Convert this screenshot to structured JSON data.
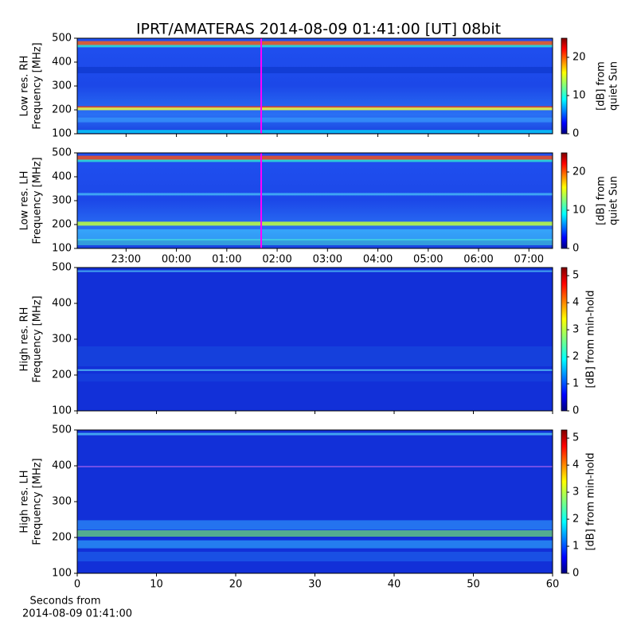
{
  "title": "IPRT/AMATERAS 2014-08-09 01:41:00 [UT]   08bit",
  "chart_data": [
    {
      "type": "heatmap",
      "ylabel": [
        "Low res. RH",
        "Frequency [MHz]"
      ],
      "ylim": [
        100,
        500
      ],
      "yticks": [
        100,
        200,
        300,
        400,
        500
      ],
      "xlim": [
        22.03,
        31.47
      ],
      "xticks": [
        {
          "value": 23,
          "label": "23:00"
        },
        {
          "value": 24,
          "label": "00:00"
        },
        {
          "value": 25,
          "label": "01:00"
        },
        {
          "value": 26,
          "label": "02:00"
        },
        {
          "value": 27,
          "label": "03:00"
        },
        {
          "value": 28,
          "label": "04:00"
        },
        {
          "value": 29,
          "label": "05:00"
        },
        {
          "value": 30,
          "label": "06:00"
        },
        {
          "value": 31,
          "label": "07:00"
        }
      ],
      "xticklabels": false,
      "marker_x": 25.683,
      "marker_color": "#ff00ff",
      "colormap": "jet",
      "clabel": [
        "[dB] from",
        "quiet Sun"
      ],
      "clim": [
        0,
        25
      ],
      "cticks": [
        0,
        10,
        20
      ]
    },
    {
      "type": "heatmap",
      "ylabel": [
        "Low res. LH",
        "Frequency [MHz]"
      ],
      "ylim": [
        100,
        500
      ],
      "yticks": [
        100,
        200,
        300,
        400,
        500
      ],
      "xlim": [
        22.03,
        31.47
      ],
      "xticks": [
        {
          "value": 23,
          "label": "23:00"
        },
        {
          "value": 24,
          "label": "00:00"
        },
        {
          "value": 25,
          "label": "01:00"
        },
        {
          "value": 26,
          "label": "02:00"
        },
        {
          "value": 27,
          "label": "03:00"
        },
        {
          "value": 28,
          "label": "04:00"
        },
        {
          "value": 29,
          "label": "05:00"
        },
        {
          "value": 30,
          "label": "06:00"
        },
        {
          "value": 31,
          "label": "07:00"
        }
      ],
      "xticklabels": true,
      "marker_x": 25.683,
      "marker_color": "#ff00ff",
      "colormap": "jet",
      "clabel": [
        "[dB] from",
        "quiet Sun"
      ],
      "clim": [
        0,
        25
      ],
      "cticks": [
        0,
        10,
        20
      ]
    },
    {
      "type": "heatmap",
      "ylabel": [
        "High res. RH",
        "Frequency [MHz]"
      ],
      "ylim": [
        100,
        500
      ],
      "yticks": [
        100,
        200,
        300,
        400,
        500
      ],
      "xlim": [
        0,
        60
      ],
      "xticks": [
        0,
        10,
        20,
        30,
        40,
        50,
        60
      ],
      "xticklabels": false,
      "colormap": "jet",
      "clabel": [
        "[dB] from min-hold"
      ],
      "clim": [
        0,
        5.3
      ],
      "cticks": [
        0,
        1,
        2,
        3,
        4,
        5
      ]
    },
    {
      "type": "heatmap",
      "ylabel": [
        "High res. LH",
        "Frequency [MHz]"
      ],
      "ylim": [
        100,
        500
      ],
      "yticks": [
        100,
        200,
        300,
        400,
        500
      ],
      "xlim": [
        0,
        60
      ],
      "xticks": [
        0,
        10,
        20,
        30,
        40,
        50,
        60
      ],
      "xticklabels": true,
      "colormap": "jet",
      "xlabel": [
        "Seconds from",
        "2014-08-09 01:41:00"
      ],
      "clabel": [
        "[dB] from min-hold"
      ],
      "clim": [
        0,
        5.3
      ],
      "cticks": [
        0,
        1,
        2,
        3,
        4,
        5
      ]
    }
  ]
}
